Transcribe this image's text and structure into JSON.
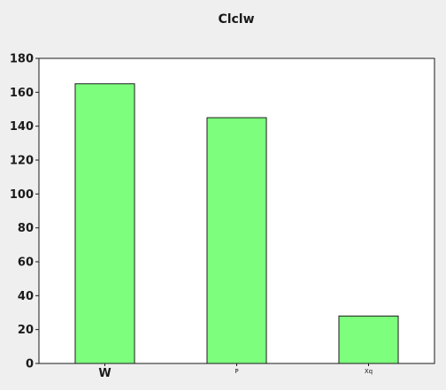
{
  "chart_data": {
    "type": "bar",
    "title": "Clclw",
    "xlabel": "",
    "ylabel": "",
    "categories": [
      "W",
      "P",
      "Xq"
    ],
    "values": [
      165,
      145,
      28
    ],
    "ylim": [
      0,
      180
    ],
    "yticks": [
      0,
      20,
      40,
      60,
      80,
      100,
      120,
      140,
      160,
      180
    ],
    "grid": false,
    "legend": "none",
    "colors": {
      "bar_fill": "#7dff7d",
      "bar_stroke": "#1a1a1a",
      "plot_background": "#ffffff",
      "page_background": "#efefef",
      "axis": "#1a1a1a"
    }
  }
}
